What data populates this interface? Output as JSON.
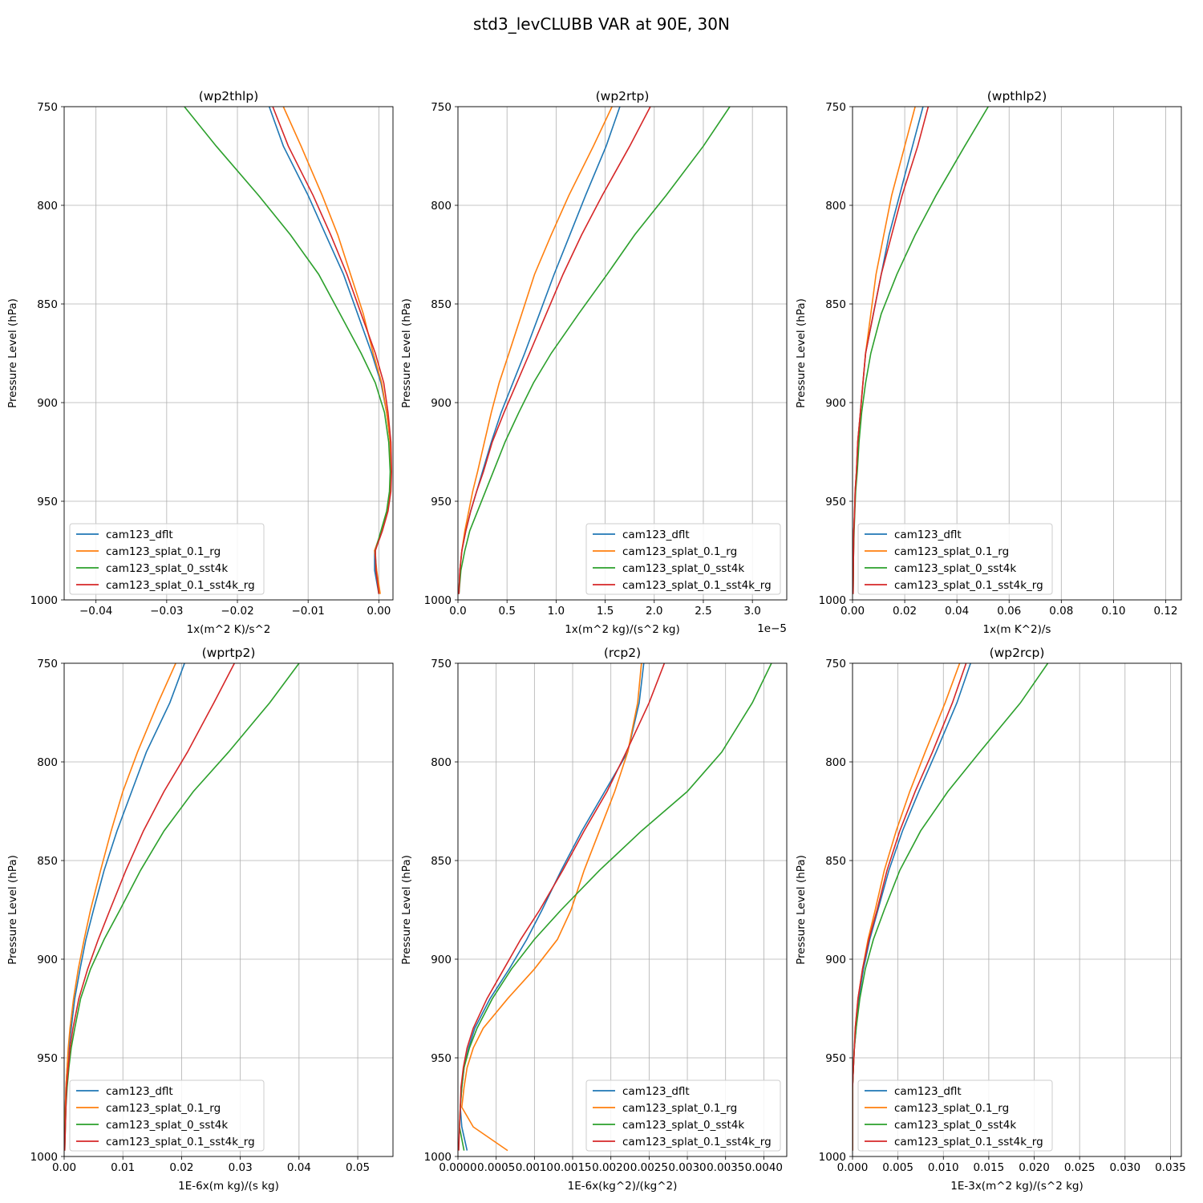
{
  "suptitle": "std3_levCLUBB VAR at 90E, 30N",
  "colors": {
    "cam123_dflt": "#1f77b4",
    "cam123_splat_0.1_rg": "#ff7f0e",
    "cam123_splat_0_sst4k": "#2ca02c",
    "cam123_splat_0.1_sst4k_rg": "#d62728"
  },
  "legend_labels": [
    "cam123_dflt",
    "cam123_splat_0.1_rg",
    "cam123_splat_0_sst4k",
    "cam123_splat_0.1_sst4k_rg"
  ],
  "ylabel": "Pressure Level (hPa)",
  "ylim": [
    1000,
    750
  ],
  "yticks": [
    750,
    800,
    850,
    900,
    950,
    1000
  ],
  "levels": [
    750,
    770,
    795,
    815,
    835,
    855,
    875,
    890,
    905,
    920,
    935,
    945,
    955,
    965,
    975,
    985,
    997
  ],
  "chart_data": [
    {
      "type": "line",
      "title": "(wp2thlp)",
      "xlabel": "1x(m^2 K)/s^2",
      "xlim": [
        -0.0445,
        0.002
      ],
      "xticks": [
        -0.04,
        -0.03,
        -0.02,
        -0.01,
        0.0
      ],
      "xtick_labels": [
        "−0.04",
        "−0.03",
        "−0.02",
        "−0.01",
        "0.00"
      ],
      "legend_loc": "lower left",
      "offset_text": "",
      "series": [
        {
          "name": "cam123_dflt",
          "values": [
            -0.0155,
            -0.0135,
            -0.01,
            -0.0075,
            -0.005,
            -0.003,
            -0.001,
            0.0003,
            0.0011,
            0.0016,
            0.0017,
            0.0016,
            0.0012,
            0.0004,
            -0.0006,
            -0.0006,
            0.0
          ]
        },
        {
          "name": "cam123_splat_0.1_rg",
          "values": [
            -0.0135,
            -0.011,
            -0.008,
            -0.0058,
            -0.004,
            -0.0022,
            -0.0008,
            0.0004,
            0.0011,
            0.0016,
            0.0017,
            0.0016,
            0.0012,
            0.0004,
            -0.0006,
            -0.0003,
            0.0002
          ]
        },
        {
          "name": "cam123_splat_0_sst4k",
          "values": [
            -0.0275,
            -0.023,
            -0.017,
            -0.0125,
            -0.0085,
            -0.0055,
            -0.0025,
            -0.0005,
            0.0008,
            0.0014,
            0.0016,
            0.0015,
            0.0011,
            0.0003,
            -0.0005,
            -0.0004,
            0.0
          ]
        },
        {
          "name": "cam123_splat_0.1_sst4k_rg",
          "values": [
            -0.015,
            -0.0128,
            -0.0093,
            -0.0068,
            -0.0045,
            -0.0025,
            -0.0005,
            0.0007,
            0.0013,
            0.0017,
            0.0018,
            0.0017,
            0.0013,
            0.0005,
            -0.0005,
            -0.0004,
            0.0
          ]
        }
      ]
    },
    {
      "type": "line",
      "title": "(wp2rtp)",
      "xlabel": "1x(m^2 kg)/(s^2 kg)",
      "xlim": [
        0.0,
        3.35
      ],
      "xticks": [
        0.0,
        0.5,
        1.0,
        1.5,
        2.0,
        2.5,
        3.0
      ],
      "xtick_labels": [
        "0.0",
        "0.5",
        "1.0",
        "1.5",
        "2.0",
        "2.5",
        "3.0"
      ],
      "legend_loc": "lower right",
      "offset_text": "1e−5",
      "series": [
        {
          "name": "cam123_dflt",
          "values": [
            1.65,
            1.51,
            1.3,
            1.14,
            0.98,
            0.83,
            0.68,
            0.56,
            0.44,
            0.34,
            0.25,
            0.19,
            0.13,
            0.08,
            0.04,
            0.02,
            0.01
          ]
        },
        {
          "name": "cam123_splat_0.1_rg",
          "values": [
            1.57,
            1.38,
            1.13,
            0.95,
            0.78,
            0.65,
            0.52,
            0.42,
            0.34,
            0.27,
            0.2,
            0.15,
            0.11,
            0.07,
            0.04,
            0.02,
            0.01
          ]
        },
        {
          "name": "cam123_splat_0_sst4k",
          "values": [
            2.77,
            2.5,
            2.12,
            1.8,
            1.52,
            1.23,
            0.95,
            0.77,
            0.62,
            0.48,
            0.36,
            0.28,
            0.2,
            0.12,
            0.07,
            0.03,
            0.01
          ]
        },
        {
          "name": "cam123_splat_0.1_sst4k_rg",
          "values": [
            1.96,
            1.75,
            1.47,
            1.26,
            1.07,
            0.9,
            0.73,
            0.6,
            0.47,
            0.35,
            0.26,
            0.19,
            0.13,
            0.08,
            0.04,
            0.02,
            0.01
          ]
        }
      ]
    },
    {
      "type": "line",
      "title": "(wpthlp2)",
      "xlabel": "1x(m K^2)/s",
      "xlim": [
        0.0,
        0.126
      ],
      "xticks": [
        0.0,
        0.02,
        0.04,
        0.06,
        0.08,
        0.1,
        0.12
      ],
      "xtick_labels": [
        "0.00",
        "0.02",
        "0.04",
        "0.06",
        "0.08",
        "0.10",
        "0.12"
      ],
      "legend_loc": "lower left",
      "offset_text": "",
      "series": [
        {
          "name": "cam123_dflt",
          "values": [
            0.027,
            0.023,
            0.018,
            0.014,
            0.011,
            0.008,
            0.005,
            0.004,
            0.003,
            0.002,
            0.0015,
            0.001,
            0.0008,
            0.0005,
            0.0004,
            0.0003,
            0.0002
          ]
        },
        {
          "name": "cam123_splat_0.1_rg",
          "values": [
            0.024,
            0.02,
            0.015,
            0.012,
            0.009,
            0.007,
            0.005,
            0.004,
            0.003,
            0.002,
            0.0015,
            0.001,
            0.0008,
            0.0005,
            0.0004,
            0.0003,
            0.0002
          ]
        },
        {
          "name": "cam123_splat_0_sst4k",
          "values": [
            0.052,
            0.043,
            0.032,
            0.024,
            0.017,
            0.011,
            0.007,
            0.005,
            0.0035,
            0.0025,
            0.0018,
            0.0012,
            0.0009,
            0.0006,
            0.0004,
            0.0003,
            0.0002
          ]
        },
        {
          "name": "cam123_splat_0.1_sst4k_rg",
          "values": [
            0.029,
            0.025,
            0.019,
            0.015,
            0.011,
            0.008,
            0.005,
            0.004,
            0.003,
            0.002,
            0.0015,
            0.001,
            0.0008,
            0.0005,
            0.0004,
            0.0003,
            0.0002
          ]
        }
      ]
    },
    {
      "type": "line",
      "title": "(wprtp2)",
      "xlabel": "1E-6x(m kg)/(s kg)",
      "xlim": [
        0.0,
        0.056
      ],
      "xticks": [
        0.0,
        0.01,
        0.02,
        0.03,
        0.04,
        0.05
      ],
      "xtick_labels": [
        "0.00",
        "0.01",
        "0.02",
        "0.03",
        "0.04",
        "0.05"
      ],
      "legend_loc": "lower left",
      "offset_text": "",
      "series": [
        {
          "name": "cam123_dflt",
          "values": [
            0.0205,
            0.018,
            0.014,
            0.0115,
            0.009,
            0.0068,
            0.005,
            0.0037,
            0.0027,
            0.0018,
            0.0012,
            0.0008,
            0.0005,
            0.0003,
            0.0002,
            0.0001,
            0.0001
          ]
        },
        {
          "name": "cam123_splat_0.1_rg",
          "values": [
            0.019,
            0.016,
            0.0125,
            0.01,
            0.008,
            0.0062,
            0.0045,
            0.0034,
            0.0024,
            0.0016,
            0.001,
            0.0007,
            0.0005,
            0.0003,
            0.0002,
            0.0001,
            0.0001
          ]
        },
        {
          "name": "cam123_splat_0_sst4k",
          "values": [
            0.04,
            0.035,
            0.028,
            0.022,
            0.017,
            0.013,
            0.0095,
            0.0068,
            0.0045,
            0.0028,
            0.0018,
            0.0012,
            0.0008,
            0.0005,
            0.0003,
            0.0002,
            0.0001
          ]
        },
        {
          "name": "cam123_splat_0.1_sst4k_rg",
          "values": [
            0.029,
            0.0255,
            0.021,
            0.017,
            0.0135,
            0.0105,
            0.0078,
            0.0058,
            0.004,
            0.0025,
            0.0015,
            0.001,
            0.0007,
            0.0004,
            0.0003,
            0.0002,
            0.0001
          ]
        }
      ]
    },
    {
      "type": "line",
      "title": "(rcp2)",
      "xlabel": "1E-6x(kg^2)/(kg^2)",
      "xlim": [
        0.0,
        0.0043
      ],
      "xticks": [
        0.0,
        0.0005,
        0.001,
        0.0015,
        0.002,
        0.0025,
        0.003,
        0.0035,
        0.004
      ],
      "xtick_labels": [
        "0.0000",
        "0.0005",
        "0.0010",
        "0.0015",
        "0.0020",
        "0.0025",
        "0.0030",
        "0.0035",
        "0.0040"
      ],
      "legend_loc": "lower right",
      "offset_text": "",
      "series": [
        {
          "name": "cam123_dflt",
          "values": [
            0.00243,
            0.00237,
            0.00222,
            0.00192,
            0.00162,
            0.00135,
            0.0011,
            0.0009,
            0.00067,
            0.00042,
            0.00022,
            0.00014,
            8e-05,
            5e-05,
            3e-05,
            5e-05,
            0.00012
          ]
        },
        {
          "name": "cam123_splat_0.1_rg",
          "values": [
            0.0024,
            0.00235,
            0.00222,
            0.00205,
            0.00185,
            0.00165,
            0.00148,
            0.0013,
            0.001,
            0.00065,
            0.00033,
            0.0002,
            0.00012,
            8e-05,
            5e-05,
            0.0002,
            0.00065
          ]
        },
        {
          "name": "cam123_splat_0_sst4k",
          "values": [
            0.0041,
            0.00385,
            0.00345,
            0.003,
            0.0024,
            0.00185,
            0.00135,
            0.001,
            0.0007,
            0.00045,
            0.00025,
            0.00015,
            8e-05,
            5e-05,
            3e-05,
            2e-05,
            8e-05
          ]
        },
        {
          "name": "cam123_splat_0.1_sst4k_rg",
          "values": [
            0.0027,
            0.0025,
            0.0022,
            0.00195,
            0.00165,
            0.00137,
            0.00107,
            0.00082,
            0.0006,
            0.00038,
            0.0002,
            0.00012,
            7e-05,
            4e-05,
            3e-05,
            2e-05,
            1e-05
          ]
        }
      ]
    },
    {
      "type": "line",
      "title": "(wp2rcp)",
      "xlabel": "1E-3x(m^2 kg)/(s^2 kg)",
      "xlim": [
        0.0,
        0.0362
      ],
      "xticks": [
        0.0,
        0.005,
        0.01,
        0.015,
        0.02,
        0.025,
        0.03,
        0.035
      ],
      "xtick_labels": [
        "0.000",
        "0.005",
        "0.010",
        "0.015",
        "0.020",
        "0.025",
        "0.030",
        "0.035"
      ],
      "legend_loc": "lower left",
      "offset_text": "",
      "series": [
        {
          "name": "cam123_dflt",
          "values": [
            0.013,
            0.0115,
            0.0092,
            0.0073,
            0.0055,
            0.004,
            0.0028,
            0.0019,
            0.0012,
            0.0007,
            0.0004,
            0.0002,
            0.0001,
            0.0,
            0.0,
            0.0,
            0.0
          ]
        },
        {
          "name": "cam123_splat_0.1_rg",
          "values": [
            0.0118,
            0.0102,
            0.008,
            0.0063,
            0.0048,
            0.0035,
            0.0025,
            0.0017,
            0.0011,
            0.0006,
            0.0003,
            0.0002,
            0.0001,
            0.0,
            0.0,
            0.0,
            0.0
          ]
        },
        {
          "name": "cam123_splat_0_sst4k",
          "values": [
            0.0215,
            0.0185,
            0.014,
            0.0105,
            0.0075,
            0.0052,
            0.0035,
            0.0023,
            0.0014,
            0.0008,
            0.0004,
            0.0002,
            0.0001,
            0.0,
            0.0,
            0.0,
            0.0
          ]
        },
        {
          "name": "cam123_splat_0.1_sst4k_rg",
          "values": [
            0.0125,
            0.011,
            0.0088,
            0.0069,
            0.0052,
            0.0038,
            0.0027,
            0.0018,
            0.0011,
            0.0006,
            0.0003,
            0.0002,
            0.0001,
            0.0,
            0.0,
            0.0,
            0.0
          ]
        }
      ]
    }
  ]
}
